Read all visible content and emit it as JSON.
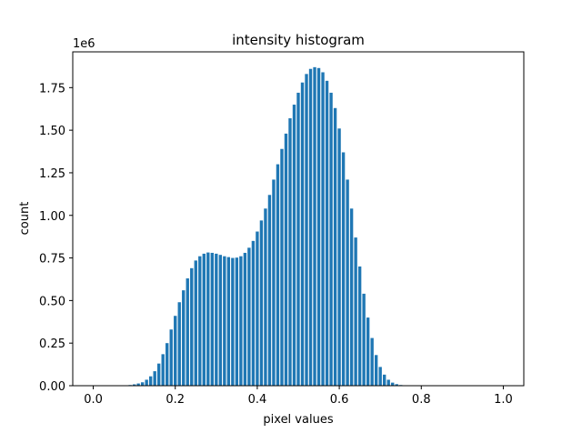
{
  "chart_data": {
    "type": "bar",
    "title": "intensity histogram",
    "xlabel": "pixel values",
    "ylabel": "count",
    "y_offset_label": "1e6",
    "xlim": [
      -0.05,
      1.05
    ],
    "ylim": [
      0,
      1960000
    ],
    "xticks": [
      0.0,
      0.2,
      0.4,
      0.6,
      0.8,
      1.0
    ],
    "xtick_labels": [
      "0.0",
      "0.2",
      "0.4",
      "0.6",
      "0.8",
      "1.0"
    ],
    "yticks": [
      0,
      250000,
      500000,
      750000,
      1000000,
      1250000,
      1500000,
      1750000
    ],
    "ytick_labels": [
      "0.00",
      "0.25",
      "0.50",
      "0.75",
      "1.00",
      "1.25",
      "1.50",
      "1.75"
    ],
    "bar_color": "#1f77b4",
    "grid": false,
    "x": [
      0.0,
      0.01,
      0.02,
      0.03,
      0.04,
      0.05,
      0.06,
      0.07,
      0.08,
      0.09,
      0.1,
      0.11,
      0.12,
      0.13,
      0.14,
      0.15,
      0.16,
      0.17,
      0.18,
      0.19,
      0.2,
      0.21,
      0.22,
      0.23,
      0.24,
      0.25,
      0.26,
      0.27,
      0.28,
      0.29,
      0.3,
      0.31,
      0.32,
      0.33,
      0.34,
      0.35,
      0.36,
      0.37,
      0.38,
      0.39,
      0.4,
      0.41,
      0.42,
      0.43,
      0.44,
      0.45,
      0.46,
      0.47,
      0.48,
      0.49,
      0.5,
      0.51,
      0.52,
      0.53,
      0.54,
      0.55,
      0.56,
      0.57,
      0.58,
      0.59,
      0.6,
      0.61,
      0.62,
      0.63,
      0.64,
      0.65,
      0.66,
      0.67,
      0.68,
      0.69,
      0.7,
      0.71,
      0.72,
      0.73,
      0.74,
      0.75,
      0.76,
      0.77,
      0.78,
      0.79,
      0.8,
      0.81,
      0.82,
      0.83,
      0.84,
      0.85,
      0.86,
      0.87,
      0.88,
      0.89,
      0.9,
      0.91,
      0.92,
      0.93,
      0.94,
      0.95,
      0.96,
      0.97,
      0.98,
      0.99,
      1.0
    ],
    "values": [
      0,
      0,
      0,
      0,
      0,
      0,
      0,
      0,
      2000,
      4000,
      8000,
      13000,
      20000,
      35000,
      55000,
      85000,
      130000,
      185000,
      250000,
      330000,
      410000,
      490000,
      560000,
      630000,
      690000,
      735000,
      760000,
      775000,
      782000,
      780000,
      775000,
      768000,
      760000,
      755000,
      750000,
      752000,
      760000,
      780000,
      810000,
      850000,
      905000,
      970000,
      1040000,
      1120000,
      1210000,
      1300000,
      1390000,
      1480000,
      1570000,
      1650000,
      1720000,
      1780000,
      1830000,
      1860000,
      1870000,
      1865000,
      1840000,
      1790000,
      1720000,
      1630000,
      1510000,
      1370000,
      1210000,
      1040000,
      870000,
      700000,
      540000,
      400000,
      280000,
      180000,
      110000,
      65000,
      35000,
      18000,
      9000,
      4000,
      1500,
      500,
      0,
      0,
      0,
      0,
      0,
      0,
      0,
      0,
      0,
      0,
      0,
      0,
      0,
      0,
      0,
      0,
      0,
      0,
      0,
      0,
      0,
      0,
      0
    ]
  }
}
